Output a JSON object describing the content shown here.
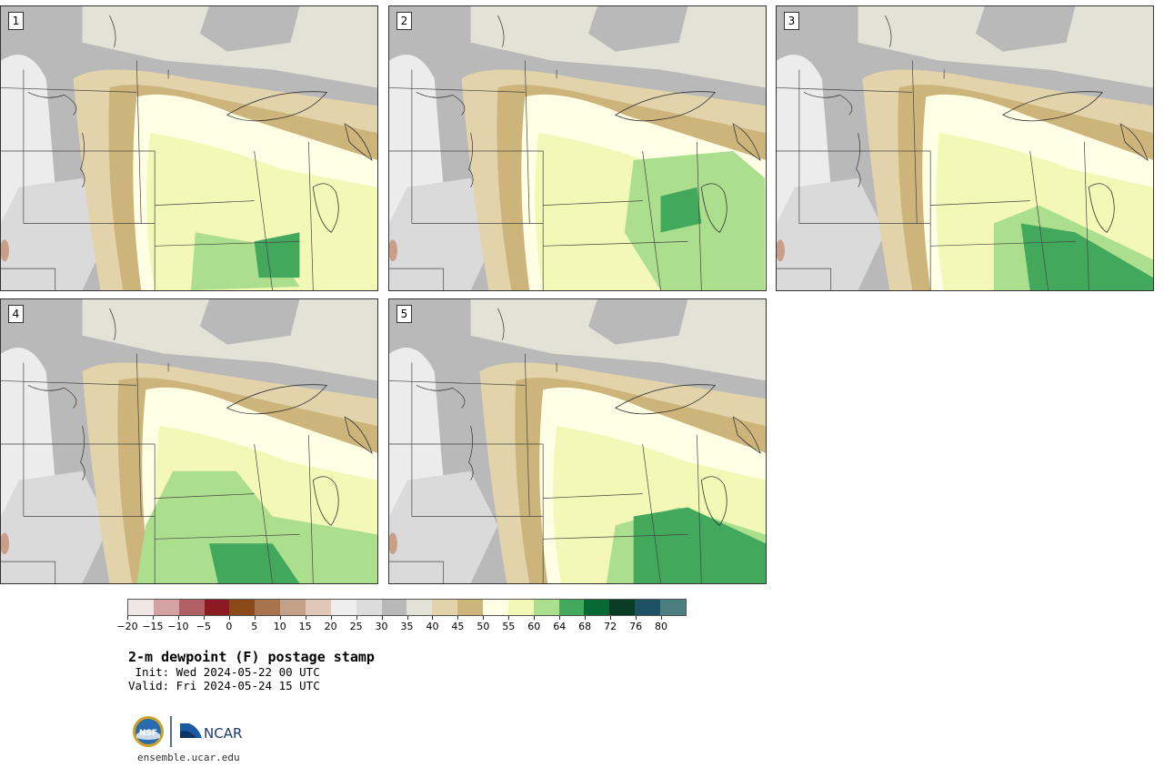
{
  "panels": [
    {
      "label": "1"
    },
    {
      "label": "2"
    },
    {
      "label": "3"
    },
    {
      "label": "4"
    },
    {
      "label": "5"
    }
  ],
  "colorbar": {
    "colors": [
      "#f1e6e6",
      "#d4a2a2",
      "#b06064",
      "#8b1a22",
      "#8a4a1a",
      "#a8744f",
      "#c4a088",
      "#e0c8b8",
      "#eeeeee",
      "#dcdcdc",
      "#b8b8b8",
      "#e2e2d6",
      "#e2d3aa",
      "#cdb47a",
      "#ffffe6",
      "#f4f8b6",
      "#abdf8e",
      "#42a95c",
      "#076a34",
      "#083d24",
      "#1f5165",
      "#4d7f80"
    ],
    "ticks": [
      "−20",
      "−15",
      "−10",
      "−5",
      "0",
      "5",
      "10",
      "15",
      "20",
      "25",
      "30",
      "35",
      "40",
      "45",
      "50",
      "55",
      "60",
      "64",
      "68",
      "72",
      "76",
      "80"
    ]
  },
  "title": "2-m dewpoint (F) postage stamp",
  "init_text": " Init: Wed 2024-05-22 00 UTC",
  "valid_text": "Valid: Fri 2024-05-24 15 UTC",
  "logo": {
    "nsf": "NSF",
    "ncar": "NCAR"
  },
  "website": "ensemble.ucar.edu"
}
